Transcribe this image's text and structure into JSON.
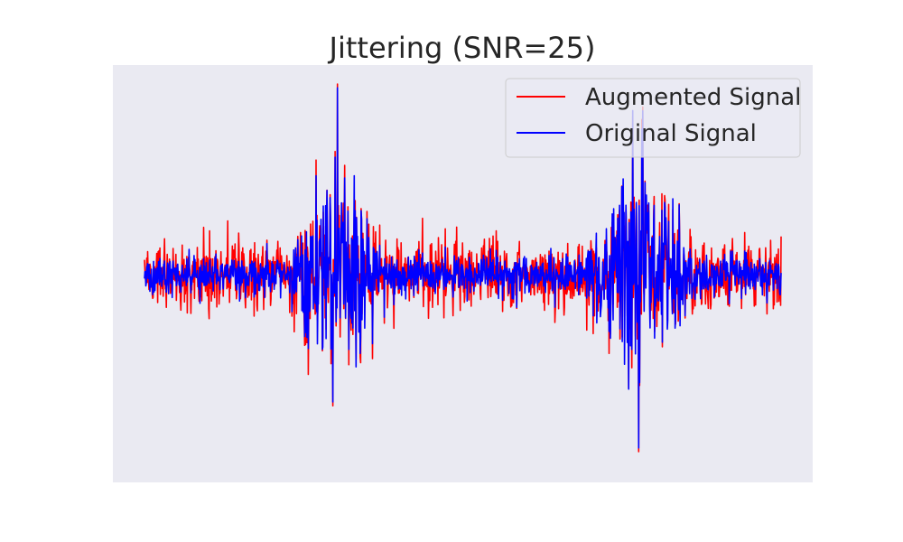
{
  "chart_data": {
    "type": "line",
    "title": "Jittering (SNR=25)",
    "xlabel": "",
    "ylabel": "",
    "axes_visible": false,
    "grid": false,
    "background": "#eaeaf2",
    "legend_position": "top-right",
    "x_range": [
      0,
      1
    ],
    "y_range": [
      -1,
      1
    ],
    "bursts": [
      {
        "center": 0.3,
        "width": 0.06,
        "peak_original": 0.98,
        "trough_original": -0.66
      },
      {
        "center": 0.78,
        "width": 0.065,
        "peak_original": 0.86,
        "trough_original": -0.9
      }
    ],
    "baseline_noise_original": 0.05,
    "jitter_noise_augmented": 0.07,
    "series": [
      {
        "name": "Augmented Signal",
        "color": "#ff0000"
      },
      {
        "name": "Original Signal",
        "color": "#0000ff"
      }
    ]
  }
}
